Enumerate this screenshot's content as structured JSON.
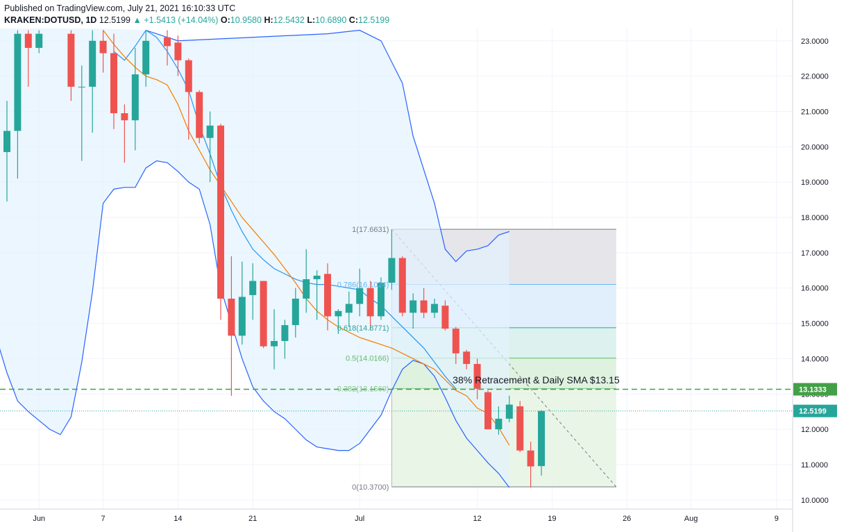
{
  "header": {
    "published": "Published on TradingView.com, July 21, 2021 16:10:33 UTC",
    "symbol": "KRAKEN:DOTUSD, 1D",
    "last": "12.5199",
    "change_arrow": "▲",
    "change": "+1.5413 (+14.04%)",
    "o_label": "O:",
    "o_value": "10.9580",
    "h_label": "H:",
    "h_value": "12.5432",
    "l_label": "L:",
    "l_value": "10.6890",
    "c_label": "C:",
    "c_value": "12.5199"
  },
  "colors": {
    "up": "#26a69a",
    "down": "#ef5350",
    "bollinger": "#2962ff",
    "bollinger_fill": "#e3f2fd",
    "sma_fast": "#2196f3",
    "sma_slow": "#f57c00",
    "level_line": "#43a047"
  },
  "chart_data": {
    "type": "candlestick",
    "y_axis": {
      "min": 9.8,
      "max": 23.3,
      "position": "right",
      "ticks": [
        "10.0000",
        "11.0000",
        "12.0000",
        "13.0000",
        "14.0000",
        "15.0000",
        "16.0000",
        "17.0000",
        "18.0000",
        "19.0000",
        "20.0000",
        "21.0000",
        "22.0000",
        "23.0000"
      ]
    },
    "x_axis": {
      "start_date": "2021-05-29",
      "end_date": "2021-08-10",
      "ticks": [
        {
          "label": "Jun",
          "day": 3
        },
        {
          "label": "7",
          "day": 9
        },
        {
          "label": "14",
          "day": 16
        },
        {
          "label": "21",
          "day": 23
        },
        {
          "label": "Jul",
          "day": 33
        },
        {
          "label": "12",
          "day": 44
        },
        {
          "label": "19",
          "day": 51
        },
        {
          "label": "26",
          "day": 58
        },
        {
          "label": "Aug",
          "day": 64
        },
        {
          "label": "9",
          "day": 72
        }
      ]
    },
    "candles": [
      {
        "d": 0,
        "o": 19.85,
        "h": 21.3,
        "l": 18.45,
        "c": 20.45
      },
      {
        "d": 1,
        "o": 20.45,
        "h": 23.3,
        "l": 19.1,
        "c": 23.2
      },
      {
        "d": 2,
        "o": 23.2,
        "h": 23.3,
        "l": 21.7,
        "c": 22.8
      },
      {
        "d": 3,
        "o": 22.8,
        "h": 23.3,
        "l": 22.65,
        "c": 23.2
      },
      {
        "d": 6,
        "o": 23.2,
        "h": 23.3,
        "l": 21.3,
        "c": 21.7
      },
      {
        "d": 7,
        "o": 21.7,
        "h": 22.3,
        "l": 19.6,
        "c": 21.7
      },
      {
        "d": 8,
        "o": 21.7,
        "h": 23.3,
        "l": 20.4,
        "c": 23.0
      },
      {
        "d": 9,
        "o": 23.0,
        "h": 23.3,
        "l": 22.1,
        "c": 22.65
      },
      {
        "d": 10,
        "o": 22.65,
        "h": 23.2,
        "l": 20.5,
        "c": 20.95
      },
      {
        "d": 11,
        "o": 20.95,
        "h": 21.2,
        "l": 19.55,
        "c": 20.75
      },
      {
        "d": 12,
        "o": 20.75,
        "h": 22.8,
        "l": 19.9,
        "c": 22.05
      },
      {
        "d": 13,
        "o": 22.05,
        "h": 23.3,
        "l": 21.7,
        "c": 23.0
      },
      {
        "d": 15,
        "o": 23.1,
        "h": 23.3,
        "l": 22.3,
        "c": 22.85
      },
      {
        "d": 16,
        "o": 22.95,
        "h": 23.15,
        "l": 22.0,
        "c": 22.45
      },
      {
        "d": 17,
        "o": 22.45,
        "h": 22.5,
        "l": 20.2,
        "c": 21.55
      },
      {
        "d": 18,
        "o": 21.55,
        "h": 21.6,
        "l": 20.1,
        "c": 20.25
      },
      {
        "d": 19,
        "o": 20.25,
        "h": 21.0,
        "l": 19.0,
        "c": 20.6
      },
      {
        "d": 20,
        "o": 20.6,
        "h": 20.65,
        "l": 15.1,
        "c": 15.7
      },
      {
        "d": 21,
        "o": 15.7,
        "h": 16.9,
        "l": 12.95,
        "c": 14.65
      },
      {
        "d": 22,
        "o": 14.65,
        "h": 16.75,
        "l": 14.4,
        "c": 15.75
      },
      {
        "d": 23,
        "o": 15.8,
        "h": 16.7,
        "l": 15.1,
        "c": 16.2
      },
      {
        "d": 24,
        "o": 16.2,
        "h": 16.2,
        "l": 14.3,
        "c": 14.35
      },
      {
        "d": 25,
        "o": 14.35,
        "h": 15.4,
        "l": 13.7,
        "c": 14.5
      },
      {
        "d": 26,
        "o": 14.5,
        "h": 15.1,
        "l": 14.0,
        "c": 14.95
      },
      {
        "d": 27,
        "o": 14.95,
        "h": 16.0,
        "l": 14.6,
        "c": 15.7
      },
      {
        "d": 28,
        "o": 15.7,
        "h": 17.1,
        "l": 15.3,
        "c": 16.25
      },
      {
        "d": 29,
        "o": 16.25,
        "h": 16.5,
        "l": 15.1,
        "c": 16.35
      },
      {
        "d": 30,
        "o": 16.4,
        "h": 16.7,
        "l": 14.8,
        "c": 15.2
      },
      {
        "d": 31,
        "o": 15.2,
        "h": 15.4,
        "l": 14.7,
        "c": 15.35
      },
      {
        "d": 32,
        "o": 15.3,
        "h": 15.9,
        "l": 14.9,
        "c": 15.55
      },
      {
        "d": 33,
        "o": 15.55,
        "h": 16.55,
        "l": 15.2,
        "c": 16.0
      },
      {
        "d": 34,
        "o": 16.0,
        "h": 16.2,
        "l": 14.8,
        "c": 15.2
      },
      {
        "d": 35,
        "o": 15.2,
        "h": 16.3,
        "l": 15.1,
        "c": 16.15
      },
      {
        "d": 36,
        "o": 16.15,
        "h": 17.66,
        "l": 15.95,
        "c": 16.85
      },
      {
        "d": 37,
        "o": 16.85,
        "h": 16.9,
        "l": 15.2,
        "c": 15.3
      },
      {
        "d": 38,
        "o": 15.3,
        "h": 15.85,
        "l": 14.85,
        "c": 15.65
      },
      {
        "d": 39,
        "o": 15.65,
        "h": 16.0,
        "l": 15.15,
        "c": 15.3
      },
      {
        "d": 40,
        "o": 15.3,
        "h": 15.7,
        "l": 15.15,
        "c": 15.55
      },
      {
        "d": 41,
        "o": 15.5,
        "h": 15.65,
        "l": 14.8,
        "c": 14.85
      },
      {
        "d": 42,
        "o": 14.85,
        "h": 14.9,
        "l": 13.85,
        "c": 14.15
      },
      {
        "d": 43,
        "o": 14.2,
        "h": 14.25,
        "l": 13.7,
        "c": 13.85
      },
      {
        "d": 44,
        "o": 13.85,
        "h": 14.0,
        "l": 12.85,
        "c": 13.15
      },
      {
        "d": 45,
        "o": 13.05,
        "h": 13.1,
        "l": 12.0,
        "c": 12.0
      },
      {
        "d": 46,
        "o": 12.0,
        "h": 12.65,
        "l": 11.85,
        "c": 12.3
      },
      {
        "d": 47,
        "o": 12.3,
        "h": 12.95,
        "l": 12.2,
        "c": 12.7
      },
      {
        "d": 48,
        "o": 12.65,
        "h": 12.8,
        "l": 11.35,
        "c": 11.4
      },
      {
        "d": 49,
        "o": 11.4,
        "h": 11.65,
        "l": 10.35,
        "c": 10.95
      },
      {
        "d": 50,
        "o": 10.958,
        "h": 12.5432,
        "l": 10.689,
        "c": 12.5199
      }
    ],
    "bollinger_upper": [
      [
        13,
        23.3
      ],
      [
        15,
        23.1
      ],
      [
        16,
        23.0
      ],
      [
        30,
        23.2
      ],
      [
        33,
        23.3
      ],
      [
        35,
        23.0
      ],
      [
        37,
        21.8
      ],
      [
        38,
        20.3
      ],
      [
        40,
        18.4
      ],
      [
        41,
        17.1
      ],
      [
        42,
        16.75
      ],
      [
        43,
        17.05
      ],
      [
        44,
        17.1
      ],
      [
        45,
        17.2
      ],
      [
        46,
        17.5
      ],
      [
        47,
        17.6
      ]
    ],
    "bollinger_lower": [
      [
        -1,
        14.6
      ],
      [
        0,
        13.6
      ],
      [
        1,
        12.8
      ],
      [
        2,
        12.5
      ],
      [
        3,
        12.25
      ],
      [
        4,
        12.0
      ],
      [
        5,
        11.85
      ],
      [
        6,
        12.35
      ],
      [
        7,
        13.9
      ],
      [
        8,
        15.9
      ],
      [
        9,
        18.4
      ],
      [
        10,
        18.8
      ],
      [
        11,
        18.85
      ],
      [
        12,
        18.85
      ],
      [
        13,
        19.4
      ],
      [
        14,
        19.6
      ],
      [
        15,
        19.55
      ],
      [
        16,
        19.3
      ],
      [
        17,
        19.0
      ],
      [
        18,
        18.8
      ],
      [
        19,
        17.8
      ],
      [
        20,
        16.0
      ],
      [
        21,
        15.0
      ],
      [
        22,
        14.0
      ],
      [
        23,
        13.2
      ],
      [
        24,
        12.8
      ],
      [
        25,
        12.5
      ],
      [
        26,
        12.3
      ],
      [
        27,
        12.0
      ],
      [
        28,
        11.7
      ],
      [
        29,
        11.5
      ],
      [
        30,
        11.45
      ],
      [
        31,
        11.4
      ],
      [
        32,
        11.4
      ],
      [
        33,
        11.6
      ],
      [
        34,
        12.0
      ],
      [
        35,
        12.4
      ],
      [
        36,
        13.1
      ],
      [
        37,
        13.7
      ],
      [
        38,
        13.95
      ],
      [
        39,
        13.85
      ],
      [
        40,
        13.5
      ],
      [
        41,
        12.9
      ],
      [
        42,
        12.25
      ],
      [
        43,
        11.75
      ],
      [
        44,
        11.4
      ],
      [
        45,
        11.05
      ],
      [
        46,
        10.75
      ],
      [
        47,
        10.35
      ]
    ],
    "sma_fast": [
      [
        10,
        22.7
      ],
      [
        11,
        22.45
      ],
      [
        12,
        22.85
      ],
      [
        13,
        23.3
      ],
      [
        14,
        23.1
      ],
      [
        15,
        22.7
      ],
      [
        16,
        22.2
      ],
      [
        17,
        21.6
      ],
      [
        18,
        20.6
      ],
      [
        19,
        19.8
      ],
      [
        20,
        18.9
      ],
      [
        21,
        18.2
      ],
      [
        22,
        17.6
      ],
      [
        23,
        17.1
      ],
      [
        24,
        16.8
      ],
      [
        25,
        16.55
      ],
      [
        26,
        16.4
      ],
      [
        27,
        16.25
      ],
      [
        28,
        16.15
      ],
      [
        29,
        16.1
      ],
      [
        30,
        16.1
      ],
      [
        31,
        16.05
      ],
      [
        32,
        16.0
      ],
      [
        33,
        15.95
      ],
      [
        34,
        15.7
      ],
      [
        35,
        15.5
      ],
      [
        36,
        15.2
      ],
      [
        37,
        14.9
      ],
      [
        38,
        14.6
      ],
      [
        39,
        14.3
      ],
      [
        40,
        13.9
      ],
      [
        41,
        13.5
      ],
      [
        42,
        13.15
      ]
    ],
    "sma_slow": [
      [
        9,
        23.3
      ],
      [
        10,
        22.9
      ],
      [
        11,
        22.55
      ],
      [
        12,
        22.25
      ],
      [
        13,
        22.0
      ],
      [
        14,
        21.9
      ],
      [
        15,
        21.75
      ],
      [
        16,
        21.2
      ],
      [
        17,
        20.45
      ],
      [
        18,
        19.9
      ],
      [
        19,
        19.35
      ],
      [
        20,
        18.9
      ],
      [
        21,
        18.45
      ],
      [
        22,
        18.0
      ],
      [
        23,
        17.65
      ],
      [
        24,
        17.3
      ],
      [
        25,
        16.95
      ],
      [
        26,
        16.55
      ],
      [
        27,
        16.15
      ],
      [
        28,
        15.7
      ],
      [
        29,
        15.35
      ],
      [
        30,
        15.1
      ],
      [
        31,
        14.9
      ],
      [
        32,
        14.75
      ],
      [
        33,
        14.6
      ],
      [
        34,
        14.5
      ],
      [
        35,
        14.4
      ],
      [
        36,
        14.3
      ],
      [
        37,
        14.15
      ],
      [
        38,
        14.0
      ],
      [
        39,
        13.85
      ],
      [
        40,
        13.7
      ],
      [
        41,
        13.4
      ],
      [
        42,
        13.1
      ],
      [
        43,
        12.95
      ],
      [
        44,
        12.6
      ],
      [
        45,
        12.45
      ],
      [
        46,
        12.05
      ],
      [
        47,
        11.55
      ]
    ],
    "fib_retracement": {
      "start_day": 36,
      "end_day": 57,
      "levels": [
        {
          "ratio": "1",
          "value": 17.6631,
          "label": "1(17.6631)",
          "label_color": "#787b86",
          "fill": "#e1e1e6",
          "line": "#787b86"
        },
        {
          "ratio": "0.786",
          "value": 16.1024,
          "label": "0.786(16.1024)",
          "label_color": "#64b5f6",
          "fill": "#dcecfb",
          "line": "#64b5f6"
        },
        {
          "ratio": "0.618",
          "value": 14.8771,
          "label": "0.618(14.8771)",
          "label_color": "#26a69a",
          "fill": "#d7efeb",
          "line": "#26a69a"
        },
        {
          "ratio": "0.5",
          "value": 14.0166,
          "label": "0.5(14.0166)",
          "label_color": "#66bb6a",
          "fill": "#d9efd9",
          "line": "#66bb6a"
        },
        {
          "ratio": "0.382",
          "value": 13.156,
          "label": "0.382(13.1560)",
          "label_color": "#81c784",
          "fill": "#e5f3e3",
          "line": "#81c784"
        },
        {
          "ratio": "0",
          "value": 10.37,
          "label": "0(10.3700)",
          "label_color": "#787b86",
          "line": "#787b86"
        }
      ],
      "trend_line": [
        [
          36,
          17.6631
        ],
        [
          57,
          10.37
        ]
      ]
    },
    "horizontal_levels": [
      {
        "value": 13.1333,
        "label": "13.1333",
        "style": "dashed",
        "color": "#43a047"
      },
      {
        "value": 12.5199,
        "label": "12.5199",
        "style": "dotted",
        "color": "#26a69a"
      }
    ],
    "annotation": {
      "text": "38% Retracement & Daily SMA $13.15",
      "day": 41.7,
      "value": 13.3
    }
  }
}
